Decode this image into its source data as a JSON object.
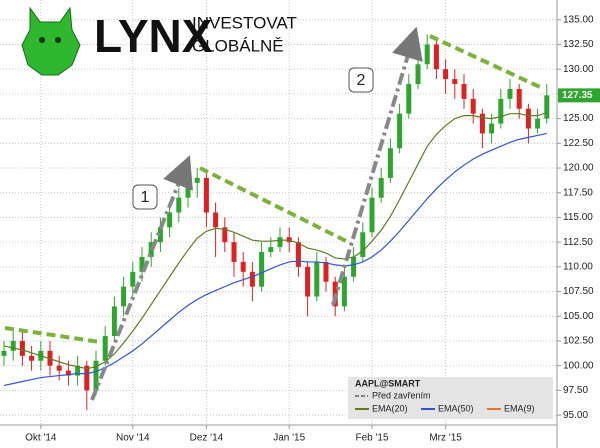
{
  "logo": {
    "brand": "LYNX",
    "line1": "INVESTOVAT",
    "line2": "GLOBÁLNĚ"
  },
  "chart_data": {
    "type": "candlestick",
    "categories": [
      null,
      null,
      null,
      null,
      "Okt '14",
      null,
      null,
      null,
      null,
      null,
      null,
      null,
      null,
      null,
      "Nov '14",
      null,
      null,
      null,
      null,
      null,
      null,
      null,
      "Dez '14",
      null,
      null,
      null,
      null,
      null,
      null,
      null,
      null,
      "Jan '15",
      null,
      null,
      null,
      null,
      null,
      null,
      null,
      null,
      "Feb '15",
      null,
      null,
      null,
      null,
      null,
      null,
      null,
      "Mrz '15",
      null,
      null,
      null,
      null,
      null,
      null,
      null,
      null,
      null,
      null,
      null
    ],
    "open": [
      101,
      101.5,
      102.5,
      101,
      100.5,
      101.5,
      100,
      99.5,
      99,
      100,
      97.5,
      100.5,
      103,
      106,
      108,
      109.5,
      111,
      112.5,
      114,
      115.5,
      117,
      118.5,
      119,
      115.5,
      114,
      112.5,
      110.5,
      109.5,
      108,
      111.5,
      112,
      113,
      112.5,
      110,
      107,
      110.5,
      108.5,
      106,
      109,
      111,
      113.5,
      117,
      119,
      122,
      125.5,
      128.5,
      130.5,
      132.5,
      130,
      129,
      128.5,
      127,
      125.5,
      123.5,
      124.5,
      127,
      128,
      126,
      124,
      125
    ],
    "high": [
      102.5,
      103.5,
      103.5,
      102,
      102.5,
      102.5,
      101,
      100.5,
      101,
      100.5,
      101.5,
      104,
      107,
      109,
      110.5,
      112,
      113.5,
      115,
      116.5,
      118,
      119.5,
      120,
      119.5,
      116.5,
      115,
      113.5,
      111.5,
      110.5,
      112.5,
      113,
      114,
      114,
      113,
      110.5,
      111.5,
      111,
      109,
      110,
      112,
      114.5,
      118,
      120,
      123,
      126.5,
      129.5,
      131.5,
      133.5,
      133,
      131,
      130,
      129.5,
      128,
      126,
      125.5,
      128,
      129,
      128.5,
      126.5,
      126,
      128.5
    ],
    "low": [
      100,
      100.5,
      100,
      99.5,
      99.5,
      99,
      98.5,
      98,
      98,
      95.5,
      97,
      100,
      102.5,
      105,
      107,
      108.5,
      110,
      111.5,
      113,
      114.5,
      116,
      117,
      114,
      111,
      111.5,
      109,
      108,
      106.5,
      107.5,
      111,
      111.5,
      111.5,
      109,
      105,
      106.5,
      107.5,
      105,
      105.5,
      108.5,
      110.5,
      113,
      116.5,
      118.5,
      121.5,
      125,
      128,
      130,
      129,
      127.5,
      127,
      126,
      124.5,
      122,
      122.5,
      124,
      126,
      125,
      122.5,
      123.5,
      124.5
    ],
    "close": [
      101.5,
      102.5,
      101,
      100.5,
      101.5,
      100,
      99.5,
      99,
      100,
      97.5,
      100.5,
      103,
      106,
      108,
      109.5,
      111,
      112.5,
      114,
      115.5,
      117,
      118.5,
      119,
      115.5,
      114,
      112.5,
      110.5,
      109.5,
      108,
      111.5,
      112,
      113,
      112.5,
      110,
      107,
      110.5,
      108.5,
      106,
      109,
      111,
      113.5,
      117,
      119,
      122,
      125.5,
      128.5,
      130.5,
      132.5,
      130,
      129,
      128.5,
      127,
      125.5,
      123.5,
      124.5,
      127,
      128,
      126,
      124,
      125,
      127.35
    ],
    "up_color": "#2ea52e",
    "down_color": "#dd2020",
    "series": [
      {
        "name": "EMA(20)",
        "color": "#5a7d1e",
        "values": [
          102,
          101.8,
          101.6,
          101.3,
          101,
          100.7,
          100.4,
          100.1,
          99.9,
          99.7,
          99.9,
          100.4,
          101.2,
          102.3,
          103.5,
          104.8,
          106.2,
          107.6,
          109,
          110.4,
          111.7,
          112.9,
          113.6,
          113.9,
          113.8,
          113.5,
          113.1,
          112.7,
          112.6,
          112.6,
          112.7,
          112.7,
          112.4,
          111.9,
          111.7,
          111.4,
          110.9,
          110.8,
          111,
          111.6,
          112.6,
          113.7,
          115.1,
          116.8,
          118.6,
          120.4,
          122.2,
          123.4,
          124.3,
          125,
          125.3,
          125.3,
          125.1,
          125,
          125.2,
          125.5,
          125.5,
          125.3,
          125.3,
          125.6
        ]
      },
      {
        "name": "EMA(50)",
        "color": "#2f55d4",
        "values": [
          98,
          98.2,
          98.4,
          98.6,
          98.8,
          98.9,
          99,
          99.1,
          99.2,
          99.2,
          99.4,
          99.8,
          100.3,
          100.9,
          101.5,
          102.2,
          103,
          103.8,
          104.6,
          105.4,
          106.1,
          106.7,
          107.2,
          107.6,
          108,
          108.4,
          108.7,
          109,
          109.4,
          109.8,
          110.2,
          110.5,
          110.6,
          110.5,
          110.5,
          110.4,
          110.2,
          110.1,
          110.2,
          110.5,
          111,
          111.7,
          112.6,
          113.6,
          114.7,
          115.8,
          116.9,
          117.9,
          118.8,
          119.6,
          120.3,
          120.9,
          121.4,
          121.8,
          122.2,
          122.6,
          122.9,
          123.1,
          123.3,
          123.5
        ]
      },
      {
        "name": "EMA(9)",
        "color": "#e8742c"
      }
    ],
    "legend_title": "AAPL@SMART",
    "legend_close": "Před zavřením",
    "annotations": [
      "1",
      "2"
    ],
    "ylim": [
      94,
      137
    ],
    "yticks": [
      {
        "value": 95,
        "label": "95.00"
      },
      {
        "value": 97.5,
        "label": "97.50"
      },
      {
        "value": 100,
        "label": "100.00"
      },
      {
        "value": 102.5,
        "label": "102.50"
      },
      {
        "value": 105,
        "label": "105.00"
      },
      {
        "value": 107.5,
        "label": "107.50"
      },
      {
        "value": 110,
        "label": "110.00"
      },
      {
        "value": 112.5,
        "label": "112.50"
      },
      {
        "value": 115,
        "label": "115.00"
      },
      {
        "value": 117.5,
        "label": "117.50"
      },
      {
        "value": 120,
        "label": "120.00"
      },
      {
        "value": 122.5,
        "label": "122.50"
      },
      {
        "value": 125,
        "label": "125.00"
      },
      {
        "value": 127.5,
        "label": "127.50"
      },
      {
        "value": 130,
        "label": "130.00"
      },
      {
        "value": 132.5,
        "label": "132.50"
      },
      {
        "value": 135,
        "label": "135.00"
      }
    ],
    "grid": true
  }
}
